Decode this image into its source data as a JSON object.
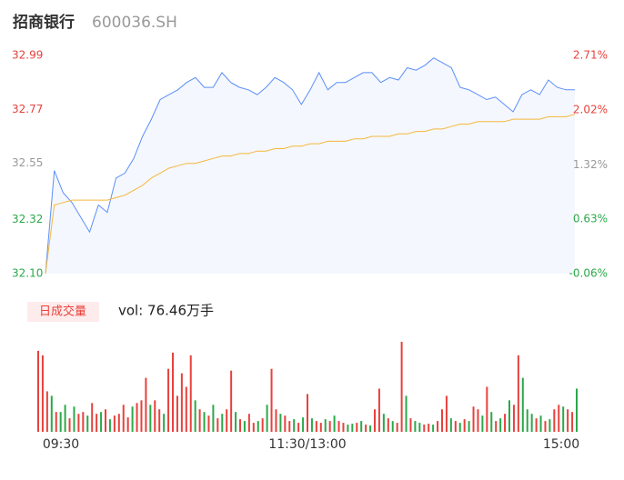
{
  "header": {
    "title": "招商银行",
    "code": "600036.SH"
  },
  "chart_data": [
    {
      "type": "line",
      "xlim": [
        0,
        240
      ],
      "x": [
        0,
        4,
        8,
        12,
        16,
        20,
        24,
        28,
        32,
        36,
        40,
        44,
        48,
        52,
        56,
        60,
        64,
        68,
        72,
        76,
        80,
        84,
        88,
        92,
        96,
        100,
        104,
        108,
        112,
        116,
        120,
        124,
        128,
        132,
        136,
        140,
        144,
        148,
        152,
        156,
        160,
        164,
        168,
        172,
        176,
        180,
        184,
        188,
        192,
        196,
        200,
        204,
        208,
        212,
        216,
        220,
        224,
        228,
        232,
        236,
        240
      ],
      "series": [
        {
          "color": "#5b8ff9",
          "area_color": "#f4f7fd",
          "values": [
            32.1,
            32.52,
            32.43,
            32.39,
            32.33,
            32.27,
            32.38,
            32.35,
            32.49,
            32.51,
            32.57,
            32.66,
            32.73,
            32.81,
            32.83,
            32.85,
            32.88,
            32.9,
            32.86,
            32.86,
            32.92,
            32.88,
            32.86,
            32.85,
            32.83,
            32.86,
            32.9,
            32.88,
            32.85,
            32.79,
            32.85,
            32.92,
            32.85,
            32.88,
            32.88,
            32.9,
            32.92,
            32.92,
            32.88,
            32.9,
            32.89,
            32.94,
            32.93,
            32.95,
            32.98,
            32.96,
            32.94,
            32.86,
            32.85,
            32.83,
            32.81,
            32.82,
            32.79,
            32.76,
            32.83,
            32.85,
            32.83,
            32.89,
            32.86,
            32.85,
            32.85
          ]
        },
        {
          "color": "#f5b83d",
          "values": [
            32.1,
            32.38,
            32.39,
            32.4,
            32.4,
            32.4,
            32.4,
            32.4,
            32.41,
            32.42,
            32.44,
            32.46,
            32.49,
            32.51,
            32.53,
            32.54,
            32.55,
            32.55,
            32.56,
            32.57,
            32.58,
            32.58,
            32.59,
            32.59,
            32.6,
            32.6,
            32.61,
            32.61,
            32.62,
            32.62,
            32.63,
            32.63,
            32.64,
            32.64,
            32.64,
            32.65,
            32.65,
            32.66,
            32.66,
            32.66,
            32.67,
            32.67,
            32.68,
            32.68,
            32.69,
            32.69,
            32.7,
            32.71,
            32.71,
            32.72,
            32.72,
            32.72,
            32.72,
            32.73,
            32.73,
            32.73,
            32.73,
            32.74,
            32.74,
            32.74,
            32.75
          ]
        }
      ],
      "ylim": [
        32.1,
        32.99
      ],
      "yticks": [
        {
          "value": 32.1,
          "label": "32.10"
        },
        32.32,
        32.55,
        32.77,
        32.99
      ],
      "ytick_colors": [
        "#2ba84a",
        "#2ba84a",
        "#999999",
        "#e8413d",
        "#e8413d"
      ],
      "y2lim": [
        -0.06,
        2.71
      ],
      "y2ticks": [
        {
          "value": -0.06,
          "label": "-0.06%"
        },
        {
          "value": 0.63,
          "label": "0.63%"
        },
        {
          "value": 1.32,
          "label": "1.32%"
        },
        {
          "value": 2.02,
          "label": "2.02%"
        },
        {
          "value": 2.71,
          "label": "2.71%"
        }
      ],
      "y2tick_colors": [
        "#2ba84a",
        "#2ba84a",
        "#999999",
        "#e8413d",
        "#e8413d"
      ]
    },
    {
      "type": "volume",
      "legend": "日成交量",
      "summary": "vol: 76.46万手",
      "ylim": [
        0,
        100
      ],
      "up_color": "#e8413d",
      "down_color": "#2ba84a",
      "values": [
        90,
        85,
        45,
        40,
        22,
        22,
        30,
        15,
        28,
        20,
        22,
        18,
        32,
        20,
        22,
        25,
        14,
        18,
        20,
        30,
        16,
        28,
        32,
        35,
        60,
        30,
        35,
        25,
        20,
        70,
        88,
        40,
        65,
        50,
        85,
        35,
        25,
        22,
        18,
        30,
        15,
        20,
        25,
        68,
        22,
        14,
        12,
        20,
        10,
        12,
        15,
        30,
        70,
        25,
        20,
        18,
        12,
        14,
        10,
        16,
        42,
        15,
        12,
        10,
        14,
        12,
        18,
        12,
        10,
        8,
        9,
        10,
        12,
        8,
        7,
        25,
        48,
        20,
        15,
        12,
        10,
        100,
        40,
        15,
        12,
        10,
        8,
        9,
        8,
        12,
        25,
        40,
        15,
        12,
        10,
        14,
        12,
        28,
        25,
        18,
        50,
        22,
        12,
        15,
        20,
        35,
        30,
        85,
        60,
        25,
        20,
        15,
        18,
        12,
        14,
        25,
        30,
        28,
        25,
        22,
        48
      ],
      "up": [
        1,
        1,
        1,
        0,
        1,
        0,
        0,
        1,
        0,
        1,
        1,
        0,
        1,
        1,
        0,
        1,
        0,
        1,
        1,
        1,
        1,
        0,
        1,
        1,
        1,
        0,
        1,
        1,
        0,
        1,
        1,
        1,
        1,
        1,
        1,
        0,
        1,
        0,
        1,
        0,
        1,
        0,
        1,
        1,
        0,
        1,
        0,
        1,
        1,
        0,
        1,
        0,
        1,
        1,
        0,
        1,
        1,
        0,
        1,
        0,
        1,
        0,
        1,
        1,
        0,
        1,
        0,
        1,
        1,
        0,
        0,
        1,
        0,
        1,
        0,
        1,
        1,
        0,
        1,
        0,
        1,
        1,
        0,
        1,
        0,
        0,
        1,
        1,
        0,
        1,
        1,
        1,
        0,
        1,
        0,
        1,
        0,
        1,
        1,
        0,
        1,
        0,
        1,
        0,
        1,
        0,
        1,
        1,
        0,
        0,
        0,
        1,
        0,
        1,
        0,
        1,
        1,
        0,
        1,
        1,
        0
      ],
      "xticks": [
        {
          "value": 0,
          "label": "09:30"
        },
        {
          "value": 120,
          "label": "11:30/13:00"
        },
        {
          "value": 240,
          "label": "15:00"
        }
      ]
    }
  ]
}
